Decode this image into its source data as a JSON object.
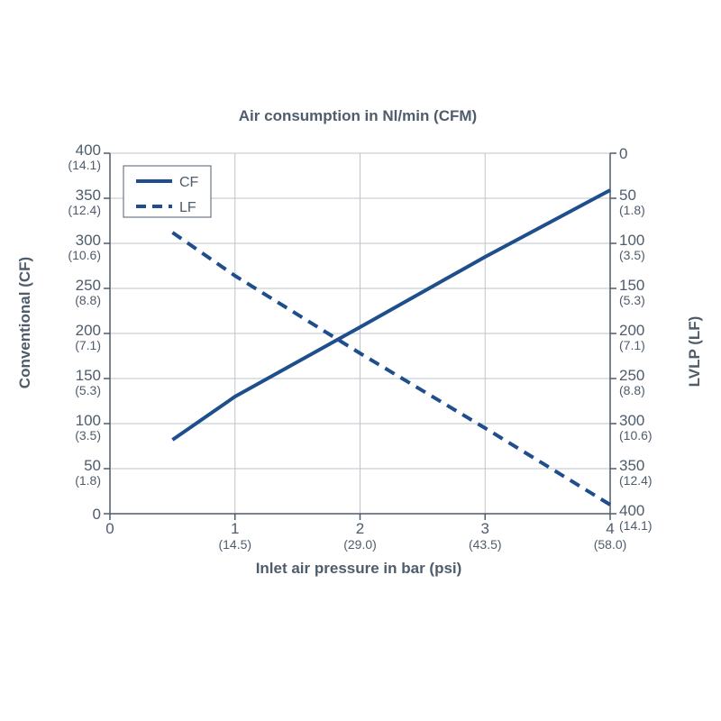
{
  "chart_data": {
    "type": "line",
    "title": "Air consumption in Nl/min (CFM)",
    "xlabel": "Inlet air pressure in bar (psi)",
    "ylabel_left": "Conventional (CF)",
    "ylabel_right": "LVLP (LF)",
    "xlim": [
      0,
      4
    ],
    "ylim_left": [
      0,
      400
    ],
    "ylim_right": [
      0,
      400
    ],
    "right_axis_inverted": true,
    "grid": true,
    "legend_position": "top-left",
    "x_ticks": [
      {
        "value": 0,
        "label": "0",
        "sub": ""
      },
      {
        "value": 1,
        "label": "1",
        "sub": "(14.5)"
      },
      {
        "value": 2,
        "label": "2",
        "sub": "(29.0)"
      },
      {
        "value": 3,
        "label": "3",
        "sub": "(43.5)"
      },
      {
        "value": 4,
        "label": "4",
        "sub": "(58.0)"
      }
    ],
    "y_left_ticks": [
      {
        "value": 0,
        "label": "0",
        "sub": ""
      },
      {
        "value": 50,
        "label": "50",
        "sub": "(1.8)"
      },
      {
        "value": 100,
        "label": "100",
        "sub": "(3.5)"
      },
      {
        "value": 150,
        "label": "150",
        "sub": "(5.3)"
      },
      {
        "value": 200,
        "label": "200",
        "sub": "(7.1)"
      },
      {
        "value": 250,
        "label": "250",
        "sub": "(8.8)"
      },
      {
        "value": 300,
        "label": "300",
        "sub": "(10.6)"
      },
      {
        "value": 350,
        "label": "350",
        "sub": "(12.4)"
      },
      {
        "value": 400,
        "label": "400",
        "sub": "(14.1)"
      }
    ],
    "y_right_ticks": [
      {
        "value": 0,
        "label": "0",
        "sub": ""
      },
      {
        "value": 50,
        "label": "50",
        "sub": "(1.8)"
      },
      {
        "value": 100,
        "label": "100",
        "sub": "(3.5)"
      },
      {
        "value": 150,
        "label": "150",
        "sub": "(5.3)"
      },
      {
        "value": 200,
        "label": "200",
        "sub": "(7.1)"
      },
      {
        "value": 250,
        "label": "250",
        "sub": "(8.8)"
      },
      {
        "value": 300,
        "label": "300",
        "sub": "(10.6)"
      },
      {
        "value": 350,
        "label": "350",
        "sub": "(12.4)"
      },
      {
        "value": 400,
        "label": "400",
        "sub": "(14.1)"
      }
    ],
    "series": [
      {
        "name": "CF",
        "axis": "left",
        "style": "solid",
        "color": "#1f4e8c",
        "points": [
          [
            0.5,
            82
          ],
          [
            1.0,
            130
          ],
          [
            2.0,
            207
          ],
          [
            3.0,
            285
          ],
          [
            4.0,
            359
          ]
        ]
      },
      {
        "name": "LF",
        "axis": "right",
        "style": "dashed",
        "color": "#1f4e8c",
        "points": [
          [
            0.5,
            88
          ],
          [
            1.0,
            136
          ],
          [
            2.0,
            222
          ],
          [
            3.0,
            305
          ],
          [
            4.0,
            390
          ]
        ]
      }
    ]
  }
}
